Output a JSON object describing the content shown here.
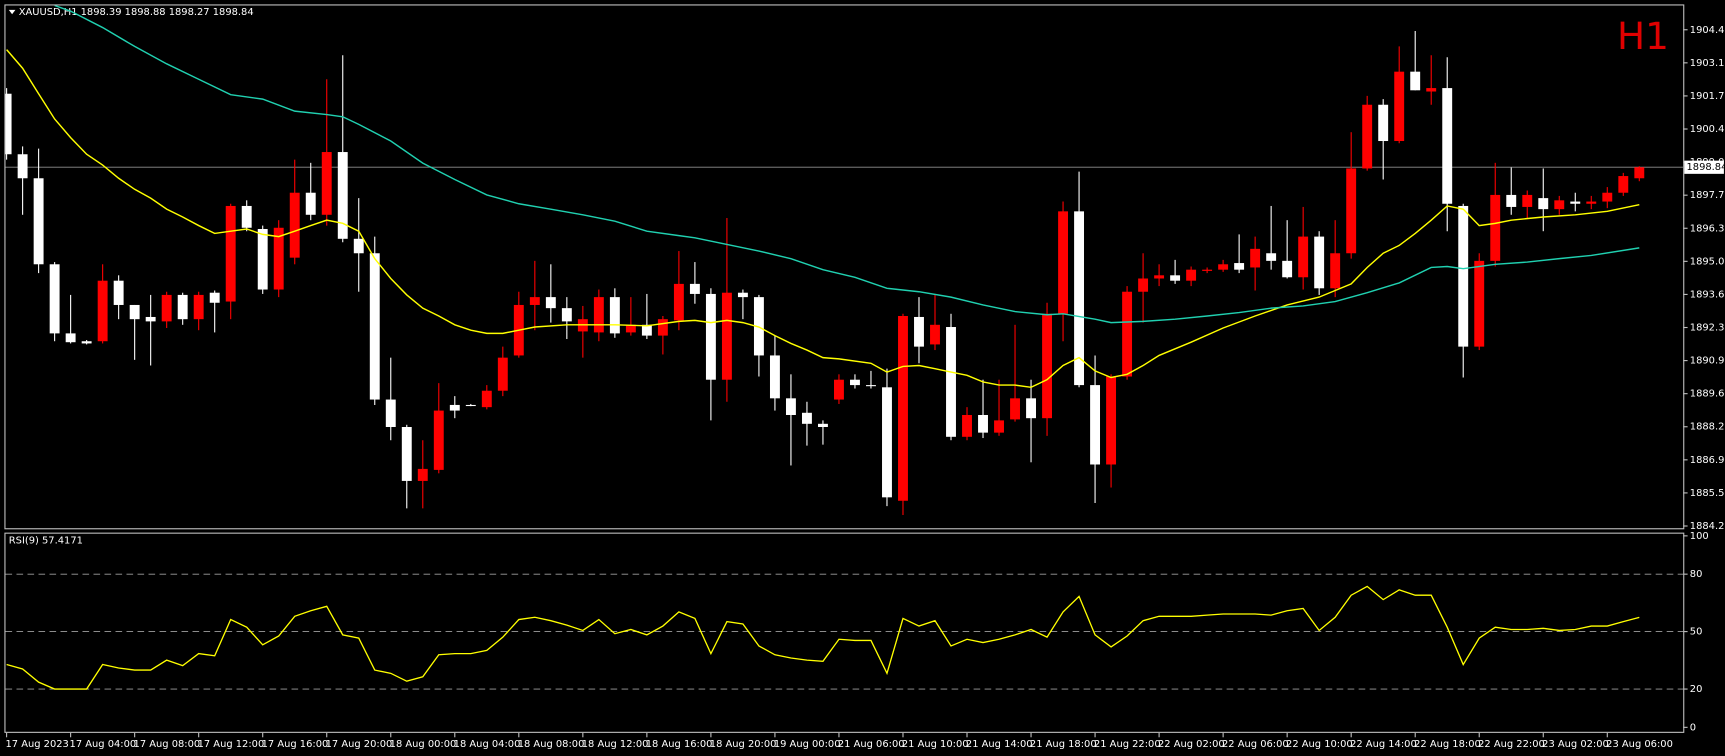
{
  "chart_data": [
    {
      "type": "candlestick",
      "title": "XAUUSD,H1  1898.39 1898.88 1898.27 1898.84",
      "annotation": "H1",
      "categories": [
        "17 Aug 2023",
        null,
        null,
        null,
        "17 Aug 04:00",
        null,
        null,
        null,
        "17 Aug 08:00",
        null,
        null,
        null,
        "17 Aug 12:00",
        null,
        null,
        null,
        "17 Aug 16:00",
        null,
        null,
        null,
        "17 Aug 20:00",
        null,
        null,
        null,
        "18 Aug 00:00",
        null,
        null,
        null,
        "18 Aug 04:00",
        null,
        null,
        null,
        "18 Aug 08:00",
        null,
        null,
        null,
        "18 Aug 12:00",
        null,
        null,
        null,
        "18 Aug 16:00",
        null,
        null,
        null,
        "18 Aug 20:00",
        null,
        null,
        null,
        "19 Aug 00:00",
        null,
        null,
        null,
        "21 Aug 06:00",
        null,
        null,
        null,
        "21 Aug 10:00",
        null,
        null,
        null,
        "21 Aug 14:00",
        null,
        null,
        null,
        "21 Aug 18:00",
        null,
        null,
        null,
        "21 Aug 22:00",
        null,
        null,
        null,
        "22 Aug 02:00",
        null,
        null,
        null,
        "22 Aug 06:00",
        null,
        null,
        null,
        "22 Aug 10:00",
        null,
        null,
        null,
        "22 Aug 14:00",
        null,
        null,
        null,
        "22 Aug 18:00",
        null,
        null,
        null,
        "22 Aug 22:00",
        null,
        null,
        null,
        "23 Aug 02:00",
        null,
        null,
        null,
        "23 Aug 06:00",
        null,
        null
      ],
      "open": [
        1901.84,
        1899.37,
        1898.39,
        1894.88,
        1892.06,
        1891.74,
        1891.74,
        1894.21,
        1893.22,
        1892.73,
        1892.55,
        1893.63,
        1892.64,
        1893.72,
        1893.36,
        1897.26,
        1896.32,
        1893.85,
        1895.15,
        1897.8,
        1896.9,
        1899.46,
        1895.92,
        1895.33,
        1889.36,
        1888.24,
        1886.04,
        1886.49,
        1889.14,
        1889.14,
        1889.05,
        1889.72,
        1891.16,
        1893.22,
        1893.54,
        1893.09,
        1892.14,
        1892.1,
        1893.54,
        1892.1,
        1892.41,
        1891.97,
        1892.59,
        1894.08,
        1893.67,
        1890.17,
        1893.72,
        1893.54,
        1891.16,
        1889.41,
        1888.82,
        1888.37,
        1889.36,
        1890.17,
        1889.95,
        1889.86,
        1885.23,
        1892.73,
        1891.61,
        1892.32,
        1887.84,
        1888.73,
        1888.01,
        1888.55,
        1889.41,
        1888.6,
        1892.86,
        1897.04,
        1889.95,
        1886.71,
        1890.3,
        1893.76,
        1894.3,
        1894.43,
        1894.21,
        1894.61,
        1894.66,
        1894.93,
        1894.75,
        1895.33,
        1895.02,
        1894.35,
        1896.01,
        1893.9,
        1895.33,
        1898.79,
        1901.39,
        1899.91,
        1902.74,
        1901.93,
        1902.07,
        1897.26,
        1891.52,
        1895.02,
        1897.71,
        1897.22,
        1897.58,
        1897.13,
        1897.44,
        1897.35,
        1897.44,
        1897.8,
        1898.39
      ],
      "high": [
        1902.07,
        1899.69,
        1899.6,
        1894.97,
        1893.63,
        1891.79,
        1894.88,
        1894.43,
        1893.22,
        1893.63,
        1893.76,
        1893.72,
        1893.76,
        1893.81,
        1897.35,
        1897.49,
        1896.46,
        1896.68,
        1899.15,
        1899.02,
        1902.43,
        1903.41,
        1897.58,
        1896.01,
        1891.07,
        1888.33,
        1887.7,
        1890.03,
        1889.5,
        1889.18,
        1889.95,
        1891.52,
        1893.76,
        1895.02,
        1894.88,
        1893.54,
        1893.18,
        1893.85,
        1893.9,
        1893.54,
        1893.67,
        1892.77,
        1895.42,
        1894.97,
        1893.9,
        1896.77,
        1893.85,
        1893.63,
        1891.97,
        1890.39,
        1889.27,
        1888.51,
        1890.39,
        1890.39,
        1890.53,
        1890.62,
        1892.86,
        1893.54,
        1893.63,
        1892.86,
        1889.05,
        1890.17,
        1890.17,
        1892.41,
        1890.17,
        1893.31,
        1897.44,
        1898.66,
        1891.16,
        1890.39,
        1893.99,
        1895.33,
        1894.88,
        1895.06,
        1894.79,
        1894.75,
        1895.06,
        1896.1,
        1896.01,
        1897.26,
        1896.68,
        1897.22,
        1896.23,
        1896.68,
        1900.27,
        1901.75,
        1901.62,
        1903.77,
        1904.4,
        1903.41,
        1903.33,
        1897.35,
        1895.33,
        1899.02,
        1898.83,
        1897.89,
        1898.79,
        1897.67,
        1897.8,
        1897.67,
        1898.03,
        1898.61,
        1898.88
      ],
      "low": [
        1899.15,
        1896.9,
        1894.52,
        1891.74,
        1891.65,
        1891.61,
        1891.65,
        1892.64,
        1890.98,
        1890.75,
        1892.28,
        1892.41,
        1892.19,
        1892.1,
        1892.64,
        1896.23,
        1893.67,
        1893.54,
        1894.88,
        1896.68,
        1896.46,
        1895.78,
        1893.76,
        1889.14,
        1887.7,
        1884.92,
        1884.92,
        1886.35,
        1888.6,
        1889.09,
        1888.96,
        1889.5,
        1891.07,
        1892.19,
        1892.5,
        1891.83,
        1891.07,
        1891.74,
        1891.88,
        1891.97,
        1891.83,
        1891.2,
        1892.19,
        1893.27,
        1888.51,
        1889.27,
        1892.64,
        1890.3,
        1888.91,
        1886.67,
        1887.48,
        1887.52,
        1889.18,
        1889.81,
        1889.81,
        1885.01,
        1884.65,
        1890.84,
        1891.38,
        1887.7,
        1887.7,
        1887.79,
        1887.88,
        1888.46,
        1886.8,
        1887.88,
        1891.74,
        1889.86,
        1885.14,
        1885.77,
        1890.17,
        1892.5,
        1893.99,
        1894.08,
        1893.99,
        1894.52,
        1894.57,
        1894.52,
        1893.81,
        1894.66,
        1894.3,
        1893.85,
        1893.63,
        1893.54,
        1895.11,
        1898.7,
        1898.34,
        1899.82,
        1901.98,
        1901.39,
        1896.23,
        1890.26,
        1891.38,
        1894.79,
        1896.9,
        1896.77,
        1896.23,
        1896.9,
        1897.04,
        1897.13,
        1897.17,
        1897.67,
        1898.27
      ],
      "close": [
        1899.37,
        1898.39,
        1894.88,
        1892.06,
        1891.7,
        1891.65,
        1894.21,
        1893.22,
        1892.64,
        1892.55,
        1893.63,
        1892.64,
        1893.63,
        1893.31,
        1897.26,
        1896.37,
        1893.85,
        1896.37,
        1897.8,
        1896.9,
        1899.46,
        1895.92,
        1895.33,
        1889.36,
        1888.24,
        1886.04,
        1886.53,
        1888.91,
        1888.91,
        1889.14,
        1889.72,
        1891.07,
        1893.22,
        1893.54,
        1893.09,
        1892.55,
        1892.64,
        1893.54,
        1892.06,
        1892.41,
        1891.97,
        1892.64,
        1894.08,
        1893.67,
        1890.17,
        1893.72,
        1893.54,
        1891.16,
        1889.41,
        1888.73,
        1888.37,
        1888.24,
        1890.17,
        1889.95,
        1889.95,
        1885.37,
        1892.77,
        1891.52,
        1892.41,
        1887.84,
        1888.73,
        1888.01,
        1888.51,
        1889.41,
        1888.6,
        1892.86,
        1897.04,
        1889.95,
        1886.71,
        1890.3,
        1893.76,
        1894.3,
        1894.43,
        1894.21,
        1894.66,
        1894.66,
        1894.88,
        1894.66,
        1895.51,
        1895.02,
        1894.35,
        1896.01,
        1893.9,
        1895.33,
        1898.79,
        1901.39,
        1899.91,
        1902.74,
        1901.98,
        1902.07,
        1897.35,
        1891.52,
        1895.02,
        1897.71,
        1897.22,
        1897.71,
        1897.13,
        1897.49,
        1897.35,
        1897.44,
        1897.8,
        1898.48,
        1898.84
      ],
      "up_color": "#ff0000",
      "down_color": "#ffffff",
      "current_price": 1898.84,
      "ylim": [
        1884.11,
        1905.44
      ],
      "yticks": [
        1904.45,
        {
          "value": 1903.1,
          "label": "1903.10"
        },
        1901.75,
        {
          "value": 1900.4,
          "label": "1900.40"
        },
        1899.05,
        {
          "value": 1897.7,
          "label": "1897.70"
        },
        1896.35,
        {
          "value": 1895,
          "label": "1895.00"
        },
        1893.65,
        {
          "value": 1892.3,
          "label": "1892.30"
        },
        1890.95,
        {
          "value": 1889.6,
          "label": "1889.60"
        },
        1888.25,
        {
          "value": 1886.9,
          "label": "1886.90"
        },
        1885.55,
        {
          "value": 1884.2,
          "label": "1884.20"
        }
      ],
      "series": [
        {
          "color": "#ffff00",
          "x": [
            0,
            1,
            2,
            3,
            4,
            5,
            6,
            7,
            8,
            9,
            10,
            11,
            12,
            13,
            14,
            15,
            16,
            17,
            18,
            19,
            20,
            21,
            22,
            23,
            24,
            25,
            26,
            27,
            28,
            29,
            30,
            31,
            32,
            33,
            35,
            38,
            40,
            42,
            43,
            44,
            45,
            46,
            47,
            48,
            49,
            50,
            51,
            52,
            54,
            55,
            56,
            57,
            58,
            59,
            60,
            61,
            62,
            63,
            64,
            65,
            66,
            67,
            68,
            69,
            70,
            71,
            72,
            74,
            76,
            78,
            80,
            82,
            84,
            85,
            86,
            87,
            88,
            89,
            90,
            91,
            92,
            93,
            94,
            96,
            98,
            100,
            102
          ],
          "values": [
            1903.64,
            1902.88,
            1901.84,
            1900.81,
            1900.05,
            1899.37,
            1898.93,
            1898.39,
            1897.94,
            1897.58,
            1897.13,
            1896.81,
            1896.46,
            1896.14,
            1896.23,
            1896.32,
            1896.1,
            1896.01,
            1896.23,
            1896.46,
            1896.68,
            1896.55,
            1896.23,
            1895.11,
            1894.3,
            1893.63,
            1893.09,
            1892.77,
            1892.41,
            1892.19,
            1892.06,
            1892.06,
            1892.19,
            1892.32,
            1892.41,
            1892.41,
            1892.37,
            1892.55,
            1892.59,
            1892.5,
            1892.59,
            1892.5,
            1892.32,
            1891.97,
            1891.65,
            1891.38,
            1891.07,
            1891.02,
            1890.84,
            1890.48,
            1890.71,
            1890.75,
            1890.62,
            1890.48,
            1890.35,
            1890.08,
            1889.95,
            1889.95,
            1889.86,
            1890.17,
            1890.75,
            1891.07,
            1890.53,
            1890.26,
            1890.39,
            1890.75,
            1891.16,
            1891.7,
            1892.28,
            1892.77,
            1893.22,
            1893.54,
            1894.08,
            1894.75,
            1895.33,
            1895.65,
            1896.14,
            1896.68,
            1897.26,
            1897.13,
            1896.46,
            1896.55,
            1896.68,
            1896.81,
            1896.9,
            1897.04,
            1897.31
          ]
        },
        {
          "color": "#20d0b0",
          "x": [
            3,
            4,
            6,
            8,
            10,
            12,
            14,
            16,
            18,
            20,
            21,
            22,
            24,
            26,
            28,
            30,
            32,
            34,
            36,
            38,
            40,
            42,
            43,
            45,
            47,
            49,
            51,
            53,
            55,
            57,
            59,
            61,
            63,
            65,
            66,
            68,
            69,
            71,
            73,
            75,
            77,
            79,
            81,
            83,
            85,
            87,
            89,
            90,
            91,
            93,
            95,
            97,
            99,
            102
          ],
          "values": [
            1905.44,
            1905.21,
            1904.54,
            1903.77,
            1903.06,
            1902.43,
            1901.8,
            1901.62,
            1901.13,
            1900.99,
            1900.9,
            1900.59,
            1899.91,
            1899.01,
            1898.34,
            1897.71,
            1897.35,
            1897.13,
            1896.9,
            1896.64,
            1896.23,
            1896.05,
            1895.96,
            1895.69,
            1895.42,
            1895.11,
            1894.66,
            1894.35,
            1893.9,
            1893.76,
            1893.54,
            1893.22,
            1892.95,
            1892.82,
            1892.86,
            1892.64,
            1892.5,
            1892.55,
            1892.64,
            1892.77,
            1892.91,
            1893.09,
            1893.18,
            1893.36,
            1893.72,
            1894.12,
            1894.75,
            1894.79,
            1894.7,
            1894.88,
            1894.97,
            1895.11,
            1895.24,
            1895.55
          ]
        }
      ]
    },
    {
      "type": "line",
      "title": "RSI(9) 57.4171",
      "color": "#ffff00",
      "values": [
        32.8,
        30.5,
        23.6,
        20,
        20,
        20,
        32.8,
        31.0,
        29.9,
        29.9,
        35.1,
        32.2,
        38.5,
        37.4,
        56.3,
        52.3,
        43.1,
        47.7,
        58.0,
        60.9,
        63.2,
        48.3,
        46.6,
        29.9,
        28.2,
        24.1,
        26.4,
        37.9,
        38.5,
        38.5,
        40.2,
        47.1,
        56.3,
        57.5,
        55.7,
        53.4,
        50.6,
        56.3,
        48.9,
        51.1,
        48.3,
        52.9,
        60.3,
        56.9,
        38.5,
        55.2,
        54.0,
        42.5,
        37.9,
        36.2,
        35.1,
        34.5,
        46.0,
        45.4,
        45.4,
        28.2,
        56.9,
        52.9,
        55.7,
        42.5,
        46.0,
        44.3,
        46.0,
        48.3,
        51.1,
        47.1,
        60.3,
        68.4,
        48.3,
        42.0,
        47.7,
        55.7,
        58.0,
        58.0,
        58.0,
        58.6,
        59.2,
        59.2,
        59.2,
        58.6,
        60.9,
        62.1,
        50.6,
        57.5,
        69.0,
        73.6,
        66.7,
        71.8,
        69.0,
        69.0,
        52.3,
        32.8,
        46.6,
        52.3,
        51.1,
        51.1,
        51.7,
        50.6,
        51.1,
        52.9,
        52.9,
        55.2,
        57.42
      ],
      "ylim": [
        -2.9,
        101.7
      ],
      "yticks": [
        0,
        20,
        50,
        80,
        100
      ],
      "levels": [
        20,
        50,
        80
      ]
    }
  ]
}
